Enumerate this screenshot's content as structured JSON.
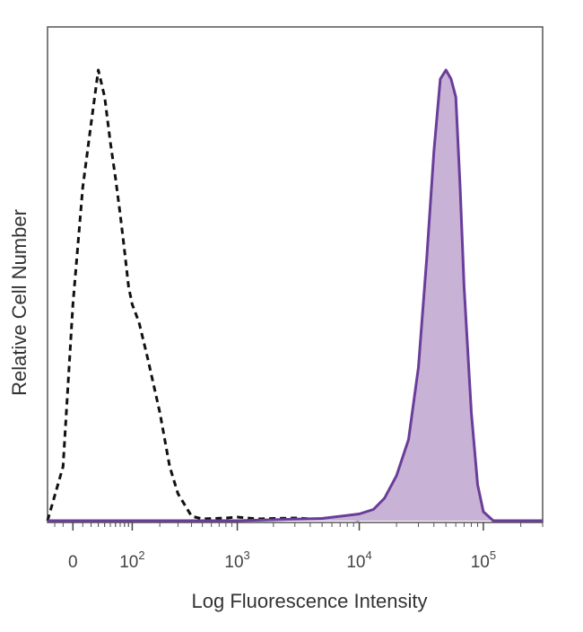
{
  "chart_data": {
    "type": "area",
    "title": "",
    "xlabel": "Log Fluorescence Intensity",
    "ylabel": "Relative Cell Number",
    "x_scale": "biexponential",
    "xlim": [
      -30,
      300000
    ],
    "ylim": [
      0,
      100
    ],
    "grid": false,
    "legend": "none",
    "x_ticks": [
      {
        "value": 0,
        "base": "0",
        "exp": ""
      },
      {
        "value": 100,
        "base": "10",
        "exp": "2"
      },
      {
        "value": 1000,
        "base": "10",
        "exp": "3"
      },
      {
        "value": 10000,
        "base": "10",
        "exp": "4"
      },
      {
        "value": 100000,
        "base": "10",
        "exp": "5"
      }
    ],
    "series": [
      {
        "style": "dashed-outline",
        "color": "#111111",
        "x": [
          -30,
          -10,
          0,
          10,
          20,
          30,
          40,
          50,
          60,
          70,
          80,
          90,
          100,
          120,
          150,
          200,
          250,
          300,
          400,
          500,
          800,
          1000,
          1500,
          2000,
          3000,
          5000,
          7000,
          10000
        ],
        "y": [
          0,
          12,
          48,
          74,
          88,
          100,
          94,
          84,
          76,
          68,
          60,
          52,
          48,
          44,
          36,
          24,
          12,
          6,
          1,
          0.4,
          0.6,
          0.8,
          0.4,
          0.5,
          0.6,
          0.3,
          0.6,
          0.2
        ]
      },
      {
        "style": "filled",
        "color": "#6a3d9a",
        "fill": "#c8b3d6",
        "x": [
          -30,
          1000,
          5000,
          10000,
          13000,
          16000,
          20000,
          25000,
          30000,
          35000,
          40000,
          45000,
          50000,
          55000,
          60000,
          65000,
          70000,
          80000,
          90000,
          100000,
          120000,
          300000
        ],
        "y": [
          0,
          0,
          0.5,
          1.5,
          2.5,
          5,
          10,
          18,
          34,
          58,
          82,
          98,
          100,
          98,
          94,
          74,
          52,
          24,
          8,
          2,
          0,
          0
        ]
      }
    ]
  }
}
